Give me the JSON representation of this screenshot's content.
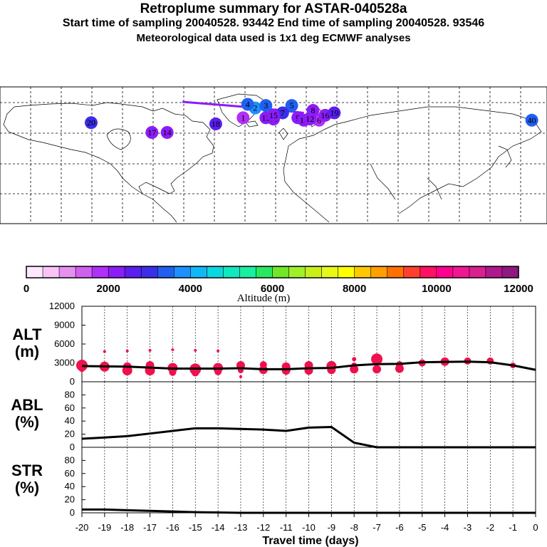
{
  "header": {
    "title": "Retroplume summary for ASTAR-040528a",
    "line2": "Start time of sampling 20040528. 93442      End time of sampling 20040528. 93546",
    "line3": "Meteorological data used is 1x1 deg ECMWF analyses"
  },
  "map": {
    "clusters": [
      {
        "label": "1",
        "lon": -20,
        "lat": 62,
        "altitude_m": 1800
      },
      {
        "label": "2",
        "lon": -12,
        "lat": 70,
        "altitude_m": 3600
      },
      {
        "label": "3",
        "lon": -5,
        "lat": 72,
        "altitude_m": 3200
      },
      {
        "label": "4",
        "lon": -17,
        "lat": 73,
        "altitude_m": 3400
      },
      {
        "label": "5",
        "lon": 12,
        "lat": 72,
        "altitude_m": 3300
      },
      {
        "label": "6",
        "lon": 30,
        "lat": 60,
        "altitude_m": 1800
      },
      {
        "label": "7",
        "lon": 6,
        "lat": 66,
        "altitude_m": 3100
      },
      {
        "label": "8",
        "lon": 26,
        "lat": 68,
        "altitude_m": 2300
      },
      {
        "label": "9",
        "lon": 16,
        "lat": 62,
        "altitude_m": 2100
      },
      {
        "label": "10",
        "lon": 0,
        "lat": 61,
        "altitude_m": 2000
      },
      {
        "label": "11",
        "lon": 20,
        "lat": 60,
        "altitude_m": 2100
      },
      {
        "label": "12",
        "lon": 24,
        "lat": 61,
        "altitude_m": 2000
      },
      {
        "label": "13",
        "lon": -5,
        "lat": 62,
        "altitude_m": 2200
      },
      {
        "label": "14",
        "lon": -70,
        "lat": 50,
        "altitude_m": 2100
      },
      {
        "label": "15",
        "lon": 0,
        "lat": 64,
        "altitude_m": 2100
      },
      {
        "label": "16",
        "lon": 34,
        "lat": 64,
        "altitude_m": 2200
      },
      {
        "label": "17",
        "lon": -80,
        "lat": 50,
        "altitude_m": 2300
      },
      {
        "label": "18",
        "lon": -38,
        "lat": 57,
        "altitude_m": 2400
      },
      {
        "label": "19",
        "lon": 40,
        "lat": 66,
        "altitude_m": 2400
      },
      {
        "label": "20",
        "lon": -120,
        "lat": 58,
        "altitude_m": 3000
      },
      {
        "label": "40",
        "lon": 170,
        "lat": 60,
        "altitude_m": 3500
      }
    ]
  },
  "colorbar": {
    "colors": [
      "#ffe8ff",
      "#f8c4f8",
      "#e890f0",
      "#d060f0",
      "#b030f8",
      "#8c1cf8",
      "#5a1ef0",
      "#3c2ee8",
      "#2060f0",
      "#1e90ff",
      "#10b8f8",
      "#08d8e0",
      "#10e8c0",
      "#18f0a0",
      "#28e860",
      "#70e828",
      "#a0f028",
      "#c8f018",
      "#e8f818",
      "#ffff00",
      "#ffc800",
      "#ffa000",
      "#ff7000",
      "#ff4030",
      "#ff1060",
      "#ff0090",
      "#f01890",
      "#d82090",
      "#b01890",
      "#901880"
    ],
    "tick_labels": [
      "0",
      "2000",
      "4000",
      "6000",
      "8000",
      "10000",
      "12000"
    ],
    "title": "Altitude (m)"
  },
  "chart_data": [
    {
      "type": "line",
      "name": "ALT",
      "ylabel": "ALT\n(m)",
      "ylabel_top": "ALT",
      "ylabel_unit": "(m)",
      "ylim": [
        0,
        12000
      ],
      "yticks": [
        "12000",
        "9000",
        "6000",
        "3000",
        "0"
      ],
      "x": [
        -20,
        -19,
        -18,
        -17,
        -16,
        -15,
        -14,
        -13,
        -12,
        -11,
        -10,
        -9,
        -8,
        -7,
        -6,
        -5,
        -4,
        -3,
        -2,
        -1,
        0
      ],
      "series": [
        {
          "name": "mean altitude",
          "values": [
            2500,
            2450,
            2400,
            2250,
            2100,
            2100,
            2100,
            2150,
            2000,
            2000,
            2150,
            2200,
            2600,
            2800,
            2850,
            3100,
            3150,
            3200,
            3100,
            2600,
            1900
          ]
        }
      ],
      "scatter": [
        {
          "x": -20,
          "y": 2600,
          "r": 8
        },
        {
          "x": -20,
          "y": 2000,
          "r": 4
        },
        {
          "x": -19,
          "y": 2400,
          "r": 7
        },
        {
          "x": -19,
          "y": 4800,
          "r": 2
        },
        {
          "x": -18,
          "y": 2400,
          "r": 6
        },
        {
          "x": -18,
          "y": 1800,
          "r": 7
        },
        {
          "x": -18,
          "y": 4900,
          "r": 2
        },
        {
          "x": -17,
          "y": 2600,
          "r": 6
        },
        {
          "x": -17,
          "y": 1800,
          "r": 7
        },
        {
          "x": -17,
          "y": 5000,
          "r": 2
        },
        {
          "x": -16,
          "y": 2200,
          "r": 7
        },
        {
          "x": -16,
          "y": 1500,
          "r": 5
        },
        {
          "x": -16,
          "y": 5100,
          "r": 2
        },
        {
          "x": -15,
          "y": 2000,
          "r": 8
        },
        {
          "x": -15,
          "y": 1400,
          "r": 5
        },
        {
          "x": -15,
          "y": 5000,
          "r": 2
        },
        {
          "x": -14,
          "y": 2200,
          "r": 7
        },
        {
          "x": -14,
          "y": 1600,
          "r": 5
        },
        {
          "x": -14,
          "y": 4900,
          "r": 2
        },
        {
          "x": -13,
          "y": 2600,
          "r": 6
        },
        {
          "x": -13,
          "y": 1800,
          "r": 4
        },
        {
          "x": -13,
          "y": 800,
          "r": 2
        },
        {
          "x": -12,
          "y": 2700,
          "r": 5
        },
        {
          "x": -12,
          "y": 1900,
          "r": 6
        },
        {
          "x": -11,
          "y": 2400,
          "r": 6
        },
        {
          "x": -11,
          "y": 1800,
          "r": 6
        },
        {
          "x": -10,
          "y": 2600,
          "r": 6
        },
        {
          "x": -10,
          "y": 1800,
          "r": 6
        },
        {
          "x": -9,
          "y": 2500,
          "r": 7
        },
        {
          "x": -9,
          "y": 1900,
          "r": 6
        },
        {
          "x": -8,
          "y": 3600,
          "r": 3
        },
        {
          "x": -8,
          "y": 2600,
          "r": 4
        },
        {
          "x": -8,
          "y": 2000,
          "r": 6
        },
        {
          "x": -7,
          "y": 3600,
          "r": 8
        },
        {
          "x": -7,
          "y": 2000,
          "r": 6
        },
        {
          "x": -6,
          "y": 2700,
          "r": 5
        },
        {
          "x": -6,
          "y": 2100,
          "r": 6
        },
        {
          "x": -5,
          "y": 3000,
          "r": 5
        },
        {
          "x": -4,
          "y": 3200,
          "r": 6
        },
        {
          "x": -3,
          "y": 3300,
          "r": 5
        },
        {
          "x": -2,
          "y": 3300,
          "r": 5
        },
        {
          "x": -1,
          "y": 2600,
          "r": 4
        }
      ]
    },
    {
      "type": "line",
      "name": "ABL",
      "ylabel": "ABL\n(%)",
      "ylabel_top": "ABL",
      "ylabel_unit": "(%)",
      "ylim": [
        0,
        100
      ],
      "yticks": [
        "80",
        "60",
        "40",
        "20",
        "0"
      ],
      "x": [
        -20,
        -19,
        -18,
        -17,
        -16,
        -15,
        -14,
        -13,
        -12,
        -11,
        -10,
        -9,
        -8,
        -7,
        -6,
        -5,
        -4,
        -3,
        -2,
        -1,
        0
      ],
      "series": [
        {
          "name": "ABL fraction",
          "values": [
            13,
            15,
            17,
            21,
            25,
            29,
            29,
            28,
            27,
            25,
            30,
            31,
            7,
            0,
            0,
            0,
            0,
            0,
            0,
            0,
            0
          ]
        }
      ]
    },
    {
      "type": "line",
      "name": "STR",
      "ylabel": "STR\n(%)",
      "ylabel_top": "STR",
      "ylabel_unit": "(%)",
      "ylim": [
        0,
        100
      ],
      "yticks": [
        "80",
        "60",
        "40",
        "20",
        "0"
      ],
      "x": [
        -20,
        -19,
        -18,
        -17,
        -16,
        -15,
        -14,
        -13,
        -12,
        -11,
        -10,
        -9,
        -8,
        -7,
        -6,
        -5,
        -4,
        -3,
        -2,
        -1,
        0
      ],
      "series": [
        {
          "name": "stratospheric fraction",
          "values": [
            5,
            5,
            4,
            3,
            2,
            1,
            0.5,
            0,
            0,
            0,
            0,
            0,
            0,
            0,
            0,
            0,
            0,
            0,
            0,
            0,
            0
          ]
        }
      ]
    }
  ],
  "xaxis": {
    "tick_labels": [
      "-20",
      "-19",
      "-18",
      "-17",
      "-16",
      "-15",
      "-14",
      "-13",
      "-12",
      "-11",
      "-10",
      "-9",
      "-8",
      "-7",
      "-6",
      "-5",
      "-4",
      "-3",
      "-2",
      "-1",
      "0"
    ],
    "label": "Travel time (days)"
  }
}
